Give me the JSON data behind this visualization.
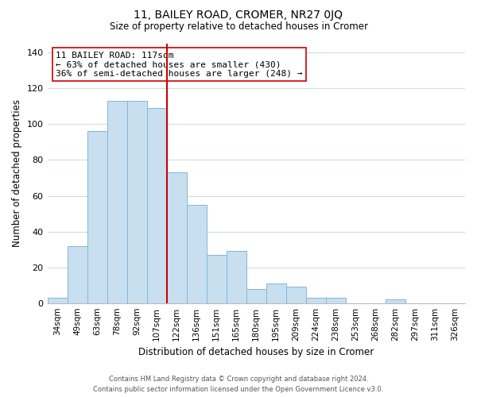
{
  "title": "11, BAILEY ROAD, CROMER, NR27 0JQ",
  "subtitle": "Size of property relative to detached houses in Cromer",
  "xlabel": "Distribution of detached houses by size in Cromer",
  "ylabel": "Number of detached properties",
  "categories": [
    "34sqm",
    "49sqm",
    "63sqm",
    "78sqm",
    "92sqm",
    "107sqm",
    "122sqm",
    "136sqm",
    "151sqm",
    "165sqm",
    "180sqm",
    "195sqm",
    "209sqm",
    "224sqm",
    "238sqm",
    "253sqm",
    "268sqm",
    "282sqm",
    "297sqm",
    "311sqm",
    "326sqm"
  ],
  "values": [
    3,
    32,
    96,
    113,
    113,
    109,
    73,
    55,
    27,
    29,
    8,
    11,
    9,
    3,
    3,
    0,
    0,
    2,
    0,
    0,
    0
  ],
  "bar_color": "#c8dff0",
  "bar_edge_color": "#7fb8d8",
  "vline_x_index": 5,
  "vline_color": "#cc0000",
  "annotation_title": "11 BAILEY ROAD: 117sqm",
  "annotation_line1": "← 63% of detached houses are smaller (430)",
  "annotation_line2": "36% of semi-detached houses are larger (248) →",
  "annotation_box_color": "#ffffff",
  "annotation_box_edge_color": "#cc0000",
  "ylim": [
    0,
    145
  ],
  "yticks": [
    0,
    20,
    40,
    60,
    80,
    100,
    120,
    140
  ],
  "footer_line1": "Contains HM Land Registry data © Crown copyright and database right 2024.",
  "footer_line2": "Contains public sector information licensed under the Open Government Licence v3.0.",
  "background_color": "#ffffff",
  "grid_color": "#ccdde8",
  "title_fontsize": 10,
  "subtitle_fontsize": 8.5
}
